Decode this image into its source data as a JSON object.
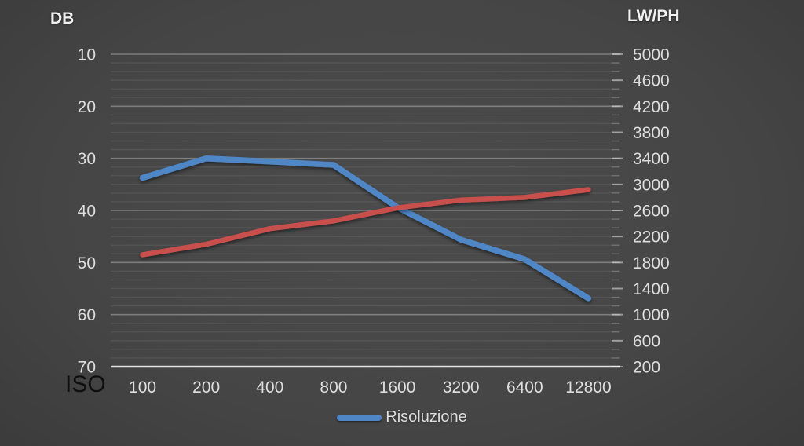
{
  "chart_data": {
    "type": "line",
    "title": "",
    "x_axis": {
      "label": "ISO",
      "categories": [
        "100",
        "200",
        "400",
        "800",
        "1600",
        "3200",
        "6400",
        "12800"
      ]
    },
    "left_axis": {
      "label": "DB",
      "ticks": [
        "10",
        "20",
        "30",
        "40",
        "50",
        "60",
        "70"
      ],
      "min": 10,
      "max": 70,
      "inverted": true
    },
    "right_axis": {
      "label": "LW/PH",
      "ticks": [
        "5000",
        "4600",
        "4200",
        "3800",
        "3400",
        "3000",
        "2600",
        "2200",
        "1800",
        "1400",
        "1000",
        "600",
        "200"
      ],
      "min": 200,
      "max": 5000
    },
    "series": [
      {
        "name": "Risoluzione",
        "axis": "right",
        "unit": "LW/PH",
        "color": "#4f86c6",
        "values": [
          3100,
          3400,
          3350,
          3300,
          2650,
          2150,
          1850,
          1250
        ]
      },
      {
        "name": "",
        "axis": "left",
        "unit": "DB",
        "color": "#c9504e",
        "values": [
          48.5,
          46.5,
          43.5,
          42,
          39.5,
          38,
          37.5,
          36
        ]
      }
    ],
    "legend": {
      "position": "bottom",
      "entries": [
        {
          "label": "Risoluzione",
          "color": "#4f86c6"
        }
      ]
    },
    "grid": {
      "major": true,
      "minor": true,
      "vertical": false
    }
  },
  "colors": {
    "background_center": "#4c4c4c",
    "background_edge": "#1a1a1a",
    "grid_major": "rgba(255,255,255,0.30)",
    "grid_minor": "rgba(255,255,255,0.08)",
    "axis_line": "rgba(255,255,255,0.80)",
    "tick_label": "#dedede",
    "axis_title": "#f0f0f0",
    "iso_label": "#0e0e0e",
    "series_blue": "#4f86c6",
    "series_red": "#c9504e"
  }
}
